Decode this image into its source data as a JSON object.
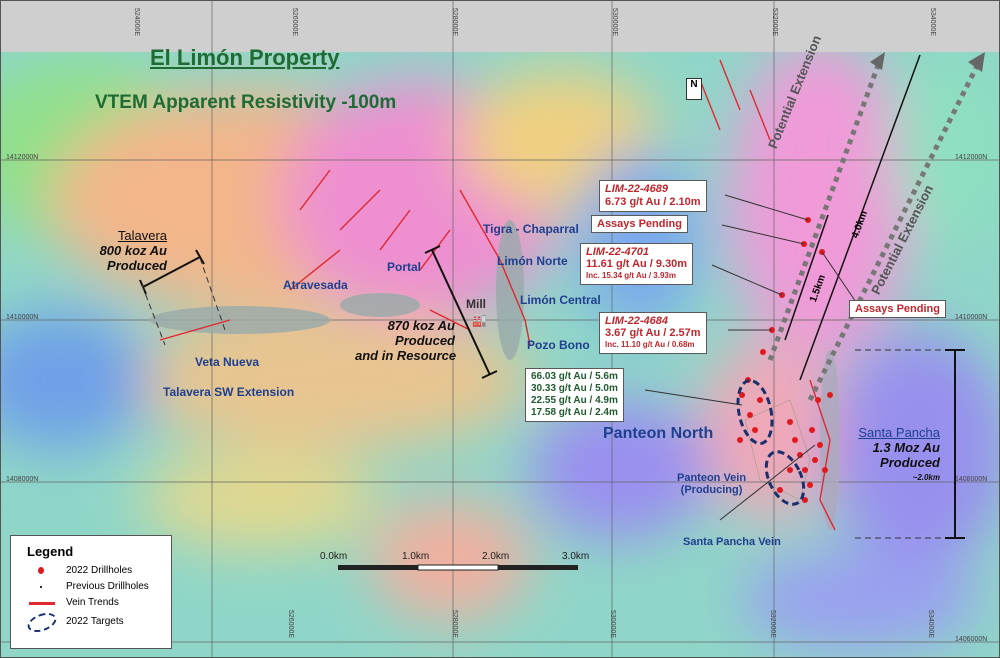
{
  "map": {
    "title": "El Limón Property",
    "subtitle": "VTEM Apparent Resistivity -100m",
    "north_arrow": "N",
    "easting_labels_top": [
      "524000E",
      "526000E",
      "528000E",
      "530000E",
      "532000E",
      "534000E"
    ],
    "easting_labels_bottom": [
      "526000E",
      "528000E",
      "530000E",
      "532000E",
      "534000E"
    ],
    "northing_labels_right": [
      "1412000N",
      "1410000N",
      "1408000N",
      "1406000N"
    ],
    "northing_labels_left": [
      "1412000N",
      "1410000N",
      "1408000N"
    ],
    "scale_bar": {
      "ticks": [
        "0.0km",
        "1.0km",
        "2.0km",
        "3.0km"
      ]
    },
    "places": {
      "tigra": "Tigra - Chaparral",
      "limon_norte": "Limón Norte",
      "limon_central": "Limón Central",
      "pozo_bono": "Pozo Bono",
      "portal": "Portal",
      "atravesada": "Atravesada",
      "veta_nueva": "Veta Nueva",
      "talavera_sw": "Talavera SW Extension",
      "mill": "Mill",
      "panteon_north": "Panteon North",
      "panteon_vein_1": "Panteon Vein",
      "panteon_vein_2": "(Producing)",
      "santa_pancha_vein": "Santa Pancha Vein"
    },
    "talavera": {
      "name": "Talavera",
      "l1": "800 koz Au",
      "l2": "Produced"
    },
    "limon_zone": {
      "l1": "870 koz Au",
      "l2": "Produced",
      "l3": "and in Resource"
    },
    "santa_pancha": {
      "name": "Santa Pancha",
      "l1": "1.3 Moz Au",
      "l2": "Produced",
      "l3": "~2.0km"
    },
    "extensions": {
      "label": "Potential Extension",
      "d1": "1.5km",
      "d2": "4.0km"
    },
    "callouts": {
      "lim4689": {
        "id": "LIM-22-4689",
        "l1": "6.73 g/t Au / 2.10m"
      },
      "pending1": "Assays Pending",
      "lim4701": {
        "id": "LIM-22-4701",
        "l1": "11.61 g/t Au / 9.30m",
        "l2": "Inc. 15.34 g/t Au / 3.93m"
      },
      "pending2": "Assays Pending",
      "lim4684": {
        "id": "LIM-22-4684",
        "l1": "3.67 g/t Au / 2.57m",
        "l2": "Inc. 11.10 g/t Au / 0.68m"
      },
      "panteon": [
        "66.03 g/t Au / 5.6m",
        "30.33 g/t Au / 5.0m",
        "22.55 g/t Au / 4.9m",
        "17.58 g/t Au / 2.4m"
      ]
    },
    "legend": {
      "title": "Legend",
      "items": [
        "2022 Drillholes",
        "Previous Drillholes",
        "Vein Trends",
        "2022 Targets"
      ]
    },
    "colors": {
      "title_green": "#1e6b33",
      "drillhole_red": "#e0191f",
      "place_blue": "#1f3f8f",
      "target_navy": "#1a2f6e"
    }
  }
}
